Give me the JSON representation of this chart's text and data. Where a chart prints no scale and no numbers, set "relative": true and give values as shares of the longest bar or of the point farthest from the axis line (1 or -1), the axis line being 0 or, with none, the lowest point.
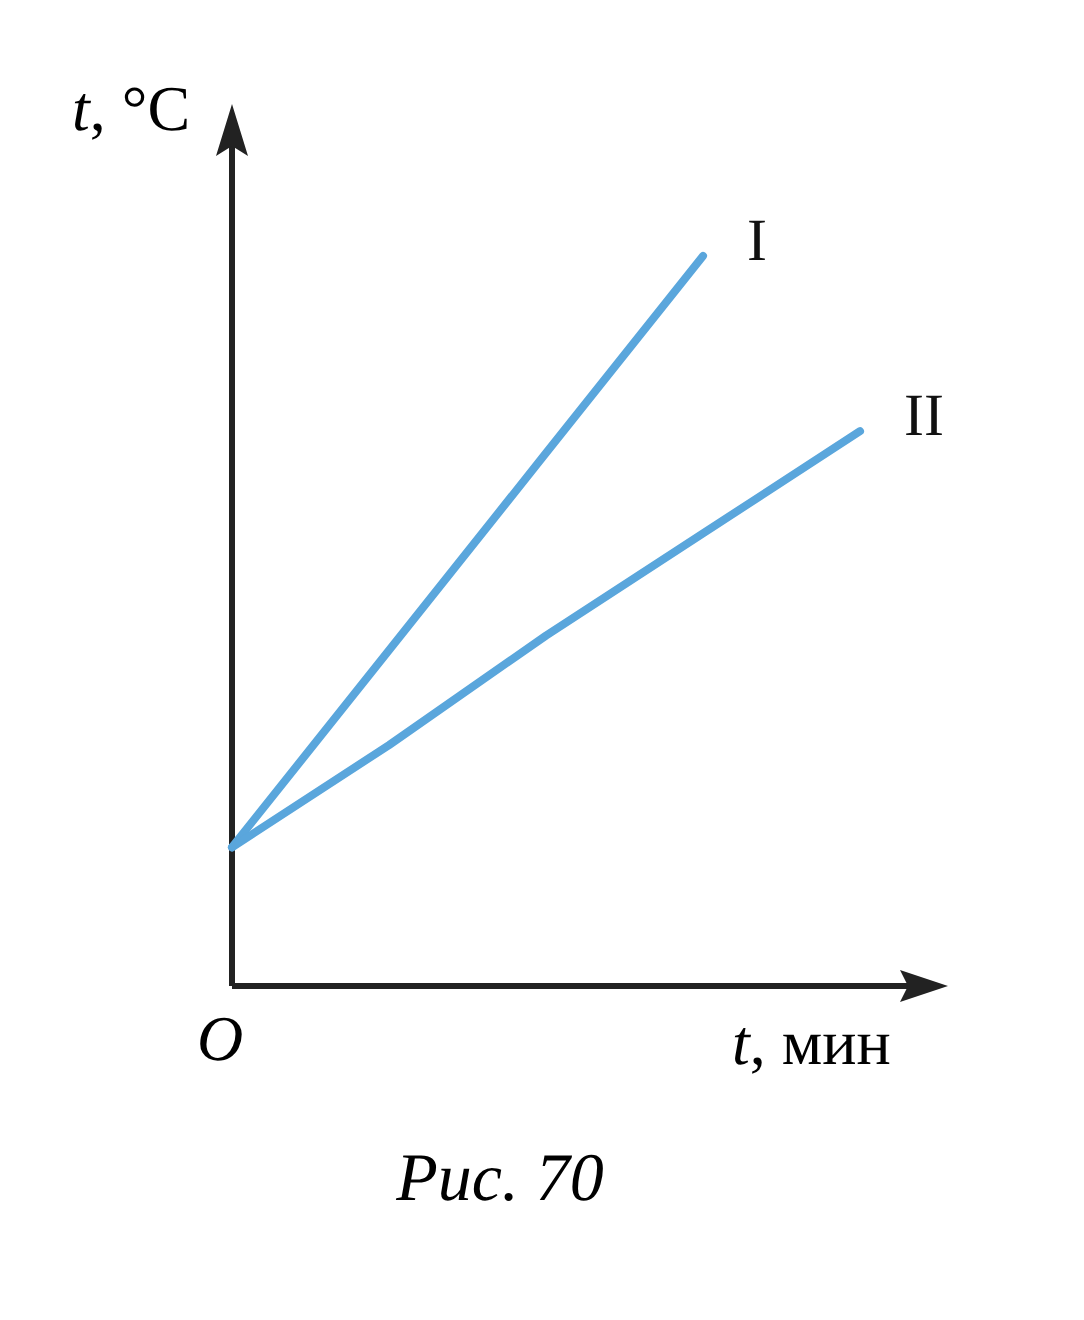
{
  "chart_data": {
    "type": "line",
    "title": "Рис. 70",
    "xlabel": "t, мин",
    "ylabel": "t, °C",
    "relative": true,
    "annotations": [
      "O"
    ],
    "marker": "none",
    "line_style": "solid",
    "categories": [
      null,
      null,
      null,
      null,
      null
    ],
    "series": [
      {
        "name": "I",
        "color": "#5aa6dc",
        "values": [
          0.19,
          0.46,
          0.73,
          1,
          null
        ]
      },
      {
        "name": "II",
        "color": "#5aa6dc",
        "values": [
          0.19,
          0.33,
          0.48,
          0.62,
          0.76
        ]
      }
    ]
  }
}
